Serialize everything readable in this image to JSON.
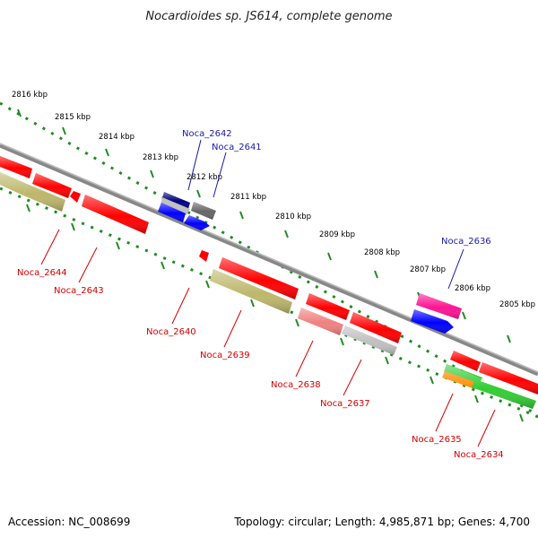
{
  "title": "Nocardioides sp. JS614, complete genome",
  "footer": {
    "accession": "Accession: NC_008699",
    "summary": "Topology: circular; Length: 4,985,871 bp; Genes: 4,700"
  },
  "colors": {
    "backbone": "#888888",
    "ruler": "#228B22",
    "label_forward": "#1a1aa6",
    "label_reverse": "#d40000",
    "red": "#ff0000",
    "tan": "#bdb76b",
    "blue": "#0000ff",
    "navy": "#000080",
    "grey": "#c0c0c0",
    "darkgrey": "#666666",
    "pink": "#f08080",
    "magenta": "#ff1493",
    "green": "#32cd32",
    "orange": "#ff8c00"
  },
  "ruler_labels": [
    "2816 kbp",
    "2815 kbp",
    "2814 kbp",
    "2813 kbp",
    "2812 kbp",
    "2811 kbp",
    "2810 kbp",
    "2809 kbp",
    "2808 kbp",
    "2807 kbp",
    "2806 kbp",
    "2805 kbp"
  ],
  "gene_labels": {
    "forward": [
      "Noca_2642",
      "Noca_2641",
      "Noca_2636"
    ],
    "reverse": [
      "Noca_2644",
      "Noca_2643",
      "Noca_2640",
      "Noca_2639",
      "Noca_2638",
      "Noca_2637",
      "Noca_2635",
      "Noca_2634"
    ]
  }
}
